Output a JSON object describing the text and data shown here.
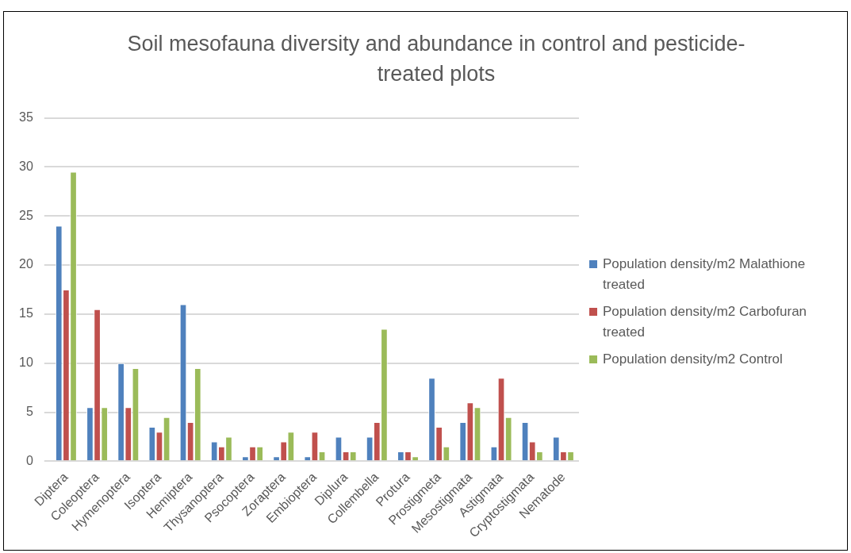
{
  "chart_data": {
    "type": "bar",
    "title": "Soil mesofauna diversity and abundance in control and pesticide-treated plots",
    "categories": [
      "Diptera",
      "Coleoptera",
      "Hymenoptera",
      "Isoptera",
      "Hemiptera",
      "Thysanoptera",
      "Psocoptera",
      "Zoraptera",
      "Embioptera",
      "Diplura",
      "Collembella",
      "Protura",
      "Prostigmeta",
      "Mesostigmata",
      "Astigmata",
      "Cryptostigmata",
      "Nematode"
    ],
    "series": [
      {
        "name": "Population density/m2 Malathione treated",
        "color": "#4f81bd",
        "values": [
          24,
          5.5,
          10,
          3.5,
          16,
          2,
          0.5,
          0.5,
          0.5,
          2.5,
          2.5,
          1,
          8.5,
          4,
          1.5,
          4,
          2.5
        ]
      },
      {
        "name": "Population density/m2 Carbofuran treated",
        "color": "#c0504d",
        "values": [
          17.5,
          15.5,
          5.5,
          3,
          4,
          1.5,
          1.5,
          2,
          3,
          1,
          4,
          1,
          3.5,
          6,
          8.5,
          2,
          1
        ]
      },
      {
        "name": "Population density/m2 Control",
        "color": "#9bbb59",
        "values": [
          29.5,
          5.5,
          9.5,
          4.5,
          9.5,
          2.5,
          1.5,
          3,
          1,
          1,
          13.5,
          0.5,
          1.5,
          5.5,
          4.5,
          1,
          1
        ]
      }
    ],
    "ylim": [
      0,
      35
    ],
    "yticks": [
      0,
      5,
      10,
      15,
      20,
      25,
      30,
      35
    ],
    "grid": "y",
    "legend": "right"
  }
}
